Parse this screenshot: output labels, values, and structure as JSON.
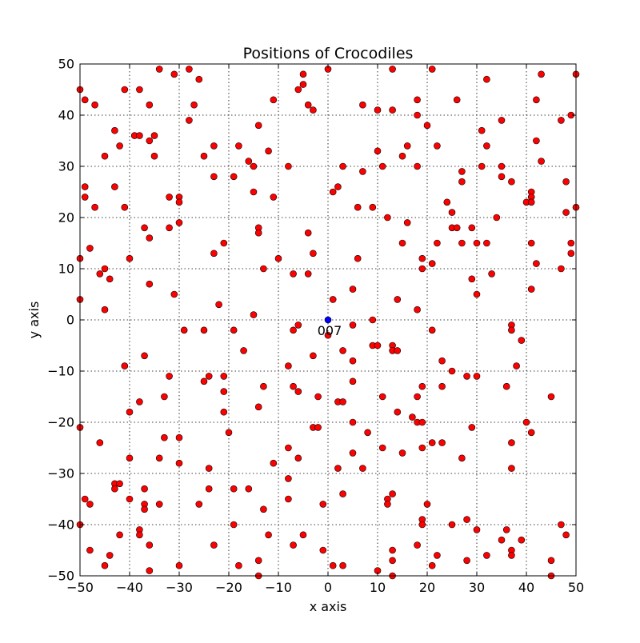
{
  "chart_data": {
    "type": "scatter",
    "title": "Positions of Crocodiles",
    "xlabel": "x axis",
    "ylabel": "y axis",
    "xlim": [
      -50,
      50
    ],
    "ylim": [
      -50,
      50
    ],
    "xticks": [
      -50,
      -40,
      -30,
      -20,
      -10,
      0,
      10,
      20,
      30,
      40,
      50
    ],
    "yticks": [
      -50,
      -40,
      -30,
      -20,
      -10,
      0,
      10,
      20,
      30,
      40,
      50
    ],
    "xtick_labels": [
      "−50",
      "−40",
      "−30",
      "−20",
      "−10",
      "0",
      "10",
      "20",
      "30",
      "40",
      "50"
    ],
    "ytick_labels": [
      "−50",
      "−40",
      "−30",
      "−20",
      "−10",
      "0",
      "10",
      "20",
      "30",
      "40",
      "50"
    ],
    "grid": true,
    "series": [
      {
        "color": "#ff0000",
        "points": [
          [
            -50,
            45
          ],
          [
            -49,
            43
          ],
          [
            -47,
            42
          ],
          [
            -34,
            49
          ],
          [
            -31,
            48
          ],
          [
            -28,
            49
          ],
          [
            -26,
            47
          ],
          [
            0,
            49
          ],
          [
            13,
            49
          ],
          [
            21,
            49
          ],
          [
            32,
            47
          ],
          [
            43,
            48
          ],
          [
            50,
            48
          ],
          [
            -41,
            45
          ],
          [
            -38,
            45
          ],
          [
            -36,
            42
          ],
          [
            -27,
            42
          ],
          [
            -11,
            43
          ],
          [
            -5,
            46
          ],
          [
            -5,
            48
          ],
          [
            -6,
            45
          ],
          [
            -4,
            42
          ],
          [
            -3,
            41
          ],
          [
            7,
            42
          ],
          [
            10,
            41
          ],
          [
            13,
            41
          ],
          [
            18,
            43
          ],
          [
            18,
            40
          ],
          [
            26,
            43
          ],
          [
            42,
            43
          ],
          [
            49,
            40
          ],
          [
            47,
            39
          ],
          [
            -43,
            37
          ],
          [
            -39,
            36
          ],
          [
            -38,
            36
          ],
          [
            -35,
            36
          ],
          [
            -36,
            35
          ],
          [
            -42,
            34
          ],
          [
            -45,
            32
          ],
          [
            -35,
            32
          ],
          [
            -28,
            39
          ],
          [
            -25,
            32
          ],
          [
            -23,
            34
          ],
          [
            -18,
            34
          ],
          [
            -16,
            31
          ],
          [
            -15,
            30
          ],
          [
            -14,
            38
          ],
          [
            -12,
            33
          ],
          [
            -8,
            30
          ],
          [
            3,
            30
          ],
          [
            7,
            29
          ],
          [
            10,
            33
          ],
          [
            11,
            30
          ],
          [
            15,
            32
          ],
          [
            16,
            34
          ],
          [
            18,
            30
          ],
          [
            20,
            38
          ],
          [
            22,
            34
          ],
          [
            27,
            29
          ],
          [
            31,
            37
          ],
          [
            31,
            30
          ],
          [
            32,
            34
          ],
          [
            35,
            39
          ],
          [
            35,
            30
          ],
          [
            42,
            35
          ],
          [
            43,
            31
          ],
          [
            -49,
            26
          ],
          [
            -49,
            24
          ],
          [
            -47,
            22
          ],
          [
            -43,
            26
          ],
          [
            -41,
            22
          ],
          [
            -32,
            24
          ],
          [
            -30,
            24
          ],
          [
            -30,
            23
          ],
          [
            -23,
            28
          ],
          [
            -19,
            28
          ],
          [
            -15,
            25
          ],
          [
            -11,
            24
          ],
          [
            1,
            25
          ],
          [
            2,
            26
          ],
          [
            6,
            22
          ],
          [
            9,
            22
          ],
          [
            12,
            20
          ],
          [
            16,
            19
          ],
          [
            21,
            11
          ],
          [
            22,
            15
          ],
          [
            24,
            23
          ],
          [
            25,
            21
          ],
          [
            25,
            18
          ],
          [
            26,
            18
          ],
          [
            27,
            27
          ],
          [
            27,
            15
          ],
          [
            29,
            18
          ],
          [
            30,
            15
          ],
          [
            32,
            15
          ],
          [
            34,
            20
          ],
          [
            35,
            28
          ],
          [
            37,
            27
          ],
          [
            40,
            23
          ],
          [
            41,
            25
          ],
          [
            41,
            24
          ],
          [
            41,
            23
          ],
          [
            41,
            15
          ],
          [
            42,
            11
          ],
          [
            48,
            27
          ],
          [
            48,
            21
          ],
          [
            50,
            22
          ],
          [
            -50,
            12
          ],
          [
            -48,
            14
          ],
          [
            -46,
            9
          ],
          [
            -45,
            10
          ],
          [
            -44,
            8
          ],
          [
            -40,
            12
          ],
          [
            -37,
            18
          ],
          [
            -36,
            16
          ],
          [
            -36,
            7
          ],
          [
            -32,
            18
          ],
          [
            -30,
            19
          ],
          [
            -31,
            5
          ],
          [
            -23,
            13
          ],
          [
            -21,
            15
          ],
          [
            -22,
            3
          ],
          [
            -14,
            18
          ],
          [
            -14,
            17
          ],
          [
            -13,
            10
          ],
          [
            -10,
            12
          ],
          [
            -7,
            9
          ],
          [
            -4,
            17
          ],
          [
            -3,
            13
          ],
          [
            -4,
            9
          ],
          [
            6,
            12
          ],
          [
            5,
            6
          ],
          [
            1,
            4
          ],
          [
            15,
            15
          ],
          [
            19,
            12
          ],
          [
            19,
            10
          ],
          [
            33,
            9
          ],
          [
            29,
            8
          ],
          [
            30,
            5
          ],
          [
            41,
            6
          ],
          [
            47,
            10
          ],
          [
            49,
            15
          ],
          [
            49,
            13
          ],
          [
            -50,
            4
          ],
          [
            -45,
            2
          ],
          [
            -29,
            -2
          ],
          [
            -25,
            -2
          ],
          [
            -19,
            -2
          ],
          [
            -15,
            1
          ],
          [
            -7,
            -2
          ],
          [
            -6,
            -1
          ],
          [
            -3,
            -7
          ],
          [
            0,
            -3
          ],
          [
            3,
            -6
          ],
          [
            5,
            -1
          ],
          [
            5,
            -8
          ],
          [
            9,
            0
          ],
          [
            9,
            -5
          ],
          [
            10,
            -5
          ],
          [
            13,
            -5
          ],
          [
            13,
            -6
          ],
          [
            14,
            -6
          ],
          [
            14,
            4
          ],
          [
            18,
            2
          ],
          [
            21,
            -2
          ],
          [
            37,
            -1
          ],
          [
            37,
            -2
          ],
          [
            39,
            -4
          ],
          [
            -41,
            -9
          ],
          [
            -37,
            -7
          ],
          [
            -32,
            -11
          ],
          [
            -24,
            -11
          ],
          [
            -25,
            -12
          ],
          [
            -21,
            -11
          ],
          [
            -21,
            -14
          ],
          [
            -17,
            -6
          ],
          [
            -8,
            -9
          ],
          [
            -7,
            -13
          ],
          [
            -6,
            -14
          ],
          [
            -13,
            -13
          ],
          [
            -14,
            -17
          ],
          [
            -2,
            -15
          ],
          [
            2,
            -16
          ],
          [
            3,
            -16
          ],
          [
            5,
            -12
          ],
          [
            5,
            -20
          ],
          [
            8,
            -22
          ],
          [
            11,
            -15
          ],
          [
            14,
            -18
          ],
          [
            17,
            -19
          ],
          [
            18,
            -15
          ],
          [
            18,
            -20
          ],
          [
            19,
            -20
          ],
          [
            19,
            -13
          ],
          [
            23,
            -8
          ],
          [
            23,
            -13
          ],
          [
            25,
            -10
          ],
          [
            28,
            -11
          ],
          [
            30,
            -11
          ],
          [
            36,
            -13
          ],
          [
            38,
            -9
          ],
          [
            45,
            -15
          ],
          [
            -50,
            -21
          ],
          [
            -46,
            -24
          ],
          [
            -40,
            -18
          ],
          [
            -38,
            -16
          ],
          [
            -33,
            -15
          ],
          [
            -33,
            -23
          ],
          [
            -30,
            -23
          ],
          [
            -21,
            -18
          ],
          [
            -20,
            -22
          ],
          [
            -40,
            -27
          ],
          [
            -34,
            -27
          ],
          [
            -30,
            -28
          ],
          [
            -24,
            -29
          ],
          [
            -11,
            -28
          ],
          [
            -8,
            -25
          ],
          [
            -6,
            -27
          ],
          [
            -3,
            -21
          ],
          [
            -2,
            -21
          ],
          [
            5,
            -26
          ],
          [
            2,
            -29
          ],
          [
            7,
            -29
          ],
          [
            11,
            -25
          ],
          [
            15,
            -26
          ],
          [
            19,
            -25
          ],
          [
            21,
            -24
          ],
          [
            23,
            -24
          ],
          [
            27,
            -27
          ],
          [
            29,
            -21
          ],
          [
            37,
            -24
          ],
          [
            37,
            -29
          ],
          [
            40,
            -20
          ],
          [
            41,
            -22
          ],
          [
            -49,
            -35
          ],
          [
            -48,
            -36
          ],
          [
            -43,
            -32
          ],
          [
            -43,
            -33
          ],
          [
            -42,
            -32
          ],
          [
            -40,
            -35
          ],
          [
            -37,
            -33
          ],
          [
            -37,
            -36
          ],
          [
            -37,
            -37
          ],
          [
            -34,
            -36
          ],
          [
            -26,
            -36
          ],
          [
            -24,
            -33
          ],
          [
            -19,
            -33
          ],
          [
            -16,
            -33
          ],
          [
            -13,
            -37
          ],
          [
            -8,
            -31
          ],
          [
            -8,
            -35
          ],
          [
            -1,
            -36
          ],
          [
            3,
            -34
          ],
          [
            12,
            -35
          ],
          [
            12,
            -36
          ],
          [
            13,
            -34
          ],
          [
            20,
            -36
          ],
          [
            19,
            -39
          ],
          [
            19,
            -40
          ],
          [
            25,
            -40
          ],
          [
            28,
            -39
          ],
          [
            30,
            -41
          ],
          [
            36,
            -41
          ],
          [
            39,
            -43
          ],
          [
            -50,
            -40
          ],
          [
            -48,
            -45
          ],
          [
            -44,
            -46
          ],
          [
            -45,
            -48
          ],
          [
            -42,
            -42
          ],
          [
            -38,
            -41
          ],
          [
            -38,
            -42
          ],
          [
            -36,
            -44
          ],
          [
            -36,
            -49
          ],
          [
            -30,
            -48
          ],
          [
            -23,
            -44
          ],
          [
            -19,
            -40
          ],
          [
            -18,
            -48
          ],
          [
            -14,
            -47
          ],
          [
            -14,
            -50
          ],
          [
            -12,
            -42
          ],
          [
            -7,
            -44
          ],
          [
            -5,
            -42
          ],
          [
            -1,
            -45
          ],
          [
            1,
            -48
          ],
          [
            3,
            -48
          ],
          [
            10,
            -49
          ],
          [
            13,
            -45
          ],
          [
            13,
            -47
          ],
          [
            13,
            -50
          ],
          [
            18,
            -44
          ],
          [
            21,
            -48
          ],
          [
            22,
            -46
          ],
          [
            28,
            -47
          ],
          [
            32,
            -46
          ],
          [
            35,
            -43
          ],
          [
            37,
            -45
          ],
          [
            37,
            -46
          ],
          [
            45,
            -47
          ],
          [
            45,
            -50
          ],
          [
            47,
            -40
          ],
          [
            48,
            -42
          ]
        ]
      },
      {
        "color": "#0000ff",
        "points": [
          [
            0,
            0
          ]
        ]
      }
    ],
    "annotations": [
      {
        "text": "007",
        "x": 0,
        "y": 0
      }
    ]
  }
}
